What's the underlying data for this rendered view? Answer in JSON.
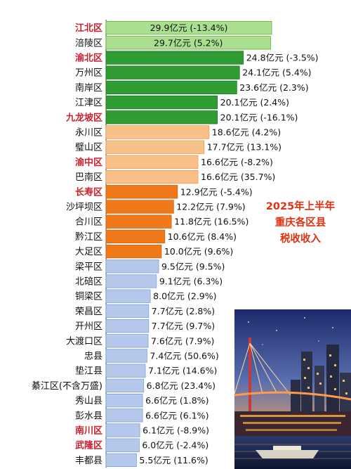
{
  "chart_data": {
    "type": "bar",
    "orientation": "horizontal",
    "title": "2025年上半年重庆各区县税收收入",
    "title_lines": [
      "2025年上半年",
      "重庆各区县",
      "税收收入"
    ],
    "unit": "亿元",
    "categories": [
      "江北区",
      "涪陵区",
      "渝北区",
      "万州区",
      "南岸区",
      "江津区",
      "九龙坡区",
      "永川区",
      "璧山区",
      "渝中区",
      "巴南区",
      "长寿区",
      "沙坪坝区",
      "合川区",
      "黔江区",
      "大足区",
      "梁平区",
      "北碚区",
      "铜梁区",
      "荣昌区",
      "开州区",
      "大渡口区",
      "忠县",
      "垫江县",
      "綦江区(不含万盛)",
      "秀山县",
      "彭水县",
      "南川区",
      "武隆区",
      "丰都县"
    ],
    "values": [
      29.9,
      29.7,
      24.8,
      24.1,
      23.6,
      20.1,
      20.1,
      18.6,
      17.7,
      16.6,
      16.6,
      12.9,
      12.2,
      11.8,
      10.6,
      10.0,
      9.5,
      9.1,
      8.0,
      7.7,
      7.7,
      7.6,
      7.4,
      7.1,
      6.8,
      6.6,
      6.6,
      6.1,
      6.0,
      5.5
    ],
    "value_labels": [
      "29.9亿元 (-13.4%)",
      "29.7亿元 (5.2%)",
      "24.8亿元 (-3.5%)",
      "24.1亿元 (5.4%)",
      "23.6亿元 (2.3%)",
      "20.1亿元 (2.4%)",
      "20.1亿元 (-16.1%)",
      "18.6亿元 (4.2%)",
      "17.7亿元 (13.1%)",
      "16.6亿元 (-8.2%)",
      "16.6亿元 (35.7%)",
      "12.9亿元 (-5.4%)",
      "12.2亿元 (7.9%)",
      "11.8亿元 (16.5%)",
      "10.6亿元 (8.4%)",
      "10.0亿元 (9.6%)",
      "9.5亿元 (9.5%)",
      "9.1亿元 (6.3%)",
      "8.0亿元 (2.9%)",
      "7.7亿元 (2.8%)",
      "7.7亿元 (9.7%)",
      "7.6亿元 (7.9%)",
      "7.4亿元 (50.6%)",
      "7.1亿元 (14.6%)",
      "6.8亿元 (23.4%)",
      "6.6亿元 (1.8%)",
      "6.6亿元 (6.1%)",
      "6.1亿元 (-8.9%)",
      "6.0亿元 (-2.4%)",
      "5.5亿元 (11.6%)"
    ],
    "yoy_change_pct": [
      -13.4,
      5.2,
      -3.5,
      5.4,
      2.3,
      2.4,
      -16.1,
      4.2,
      13.1,
      -8.2,
      35.7,
      -5.4,
      7.9,
      16.5,
      8.4,
      9.6,
      9.5,
      6.3,
      2.9,
      2.8,
      9.7,
      7.9,
      50.6,
      14.6,
      23.4,
      1.8,
      6.1,
      -8.9,
      -2.4,
      11.6
    ],
    "highlight_label_color": "#cc1f2e",
    "normal_label_color": "#111111",
    "highlighted_categories": [
      "江北区",
      "渝北区",
      "九龙坡区",
      "渝中区",
      "长寿区",
      "南川区",
      "武隆区"
    ],
    "bar_groups": [
      {
        "tier": "light-green",
        "fill": "#a9df8e",
        "stroke": "#5fae3e",
        "count": 2
      },
      {
        "tier": "dark-green",
        "fill": "#2f9c34",
        "stroke": "#1f7a24",
        "count": 5
      },
      {
        "tier": "peach",
        "fill": "#f9c08a",
        "stroke": "#e89a55",
        "count": 4
      },
      {
        "tier": "orange",
        "fill": "#f07a1a",
        "stroke": "#d0600a",
        "count": 5
      },
      {
        "tier": "light-blue",
        "fill": "#b4c9ec",
        "stroke": "#7f9fd1",
        "count": 14
      }
    ],
    "xlim": [
      0,
      29.9
    ],
    "grid": false,
    "legend": "none"
  },
  "annotation_color": "#e03010"
}
